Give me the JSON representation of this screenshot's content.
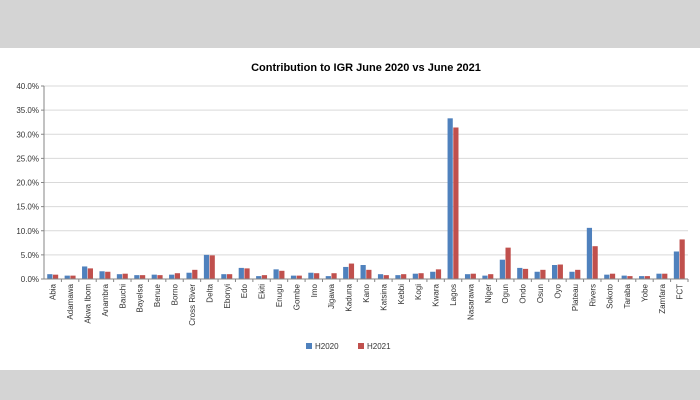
{
  "chart_data": {
    "type": "bar",
    "title": "Contribution to IGR June 2020 vs June 2021",
    "xlabel": "",
    "ylabel": "",
    "ylim": [
      0,
      40
    ],
    "yticks": [
      "0.0%",
      "5.0%",
      "10.0%",
      "15.0%",
      "20.0%",
      "25.0%",
      "30.0%",
      "35.0%",
      "40.0%"
    ],
    "grid": true,
    "legend_position": "bottom",
    "categories": [
      "Abia",
      "Adamawa",
      "Akwa Ibom",
      "Anambra",
      "Bauchi",
      "Bayelsa",
      "Benue",
      "Borno",
      "Cross River",
      "Delta",
      "Ebonyi",
      "Edo",
      "Ekiti",
      "Enugu",
      "Gombe",
      "Imo",
      "Jigawa",
      "Kaduna",
      "Kano",
      "Katsina",
      "Kebbi",
      "Kogi",
      "Kwara",
      "Lagos",
      "Nasarawa",
      "Niger",
      "Ogun",
      "Ondo",
      "Osun",
      "Oyo",
      "Plateau",
      "Rivers",
      "Sokoto",
      "Taraba",
      "Yobe",
      "Zamfara",
      "FCT"
    ],
    "series": [
      {
        "name": "H2020",
        "color": "#4f81bd",
        "values": [
          1.0,
          0.7,
          2.6,
          1.6,
          1.0,
          0.8,
          0.9,
          0.9,
          1.3,
          5.0,
          1.0,
          2.3,
          0.6,
          2.0,
          0.7,
          1.3,
          0.6,
          2.5,
          2.9,
          1.0,
          0.8,
          1.1,
          1.5,
          33.3,
          1.0,
          0.7,
          4.0,
          2.3,
          1.5,
          2.9,
          1.5,
          10.6,
          0.9,
          0.7,
          0.6,
          1.1,
          5.7
        ]
      },
      {
        "name": "H2021",
        "color": "#c0504d",
        "values": [
          0.9,
          0.7,
          2.2,
          1.5,
          1.1,
          0.8,
          0.8,
          1.2,
          1.9,
          4.9,
          1.0,
          2.2,
          0.8,
          1.7,
          0.7,
          1.2,
          1.2,
          3.2,
          1.9,
          0.8,
          1.0,
          1.2,
          2.0,
          31.4,
          1.1,
          1.0,
          6.5,
          2.1,
          1.9,
          3.0,
          1.9,
          6.8,
          1.1,
          0.6,
          0.6,
          1.1,
          8.2
        ]
      }
    ]
  }
}
